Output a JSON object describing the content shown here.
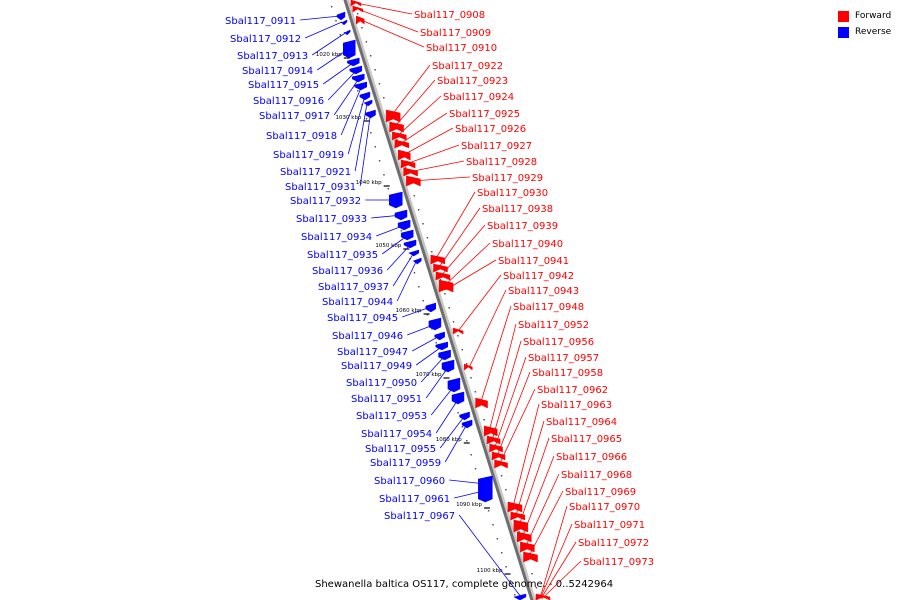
{
  "genome": {
    "caption": "Shewanella baltica OS117, complete genome. - 0..5242964"
  },
  "legend": {
    "forward": {
      "label": "Forward",
      "color": "#ff0000"
    },
    "reverse": {
      "label": "Reverse",
      "color": "#0000ff"
    }
  },
  "ticks": [
    "1020 kbp",
    "1030 kbp",
    "1040 kbp",
    "1050 kbp",
    "1060 kbp",
    "1070 kbp",
    "1080 kbp",
    "1090 kbp",
    "1100 kbp"
  ],
  "reverse_genes": [
    "Sbal117_0911",
    "Sbal117_0912",
    "Sbal117_0913",
    "Sbal117_0914",
    "Sbal117_0915",
    "Sbal117_0916",
    "Sbal117_0917",
    "Sbal117_0918",
    "Sbal117_0919",
    "Sbal117_0921",
    "Sbal117_0931",
    "Sbal117_0932",
    "Sbal117_0933",
    "Sbal117_0934",
    "Sbal117_0935",
    "Sbal117_0936",
    "Sbal117_0937",
    "Sbal117_0944",
    "Sbal117_0945",
    "Sbal117_0946",
    "Sbal117_0947",
    "Sbal117_0949",
    "Sbal117_0950",
    "Sbal117_0951",
    "Sbal117_0953",
    "Sbal117_0954",
    "Sbal117_0955",
    "Sbal117_0959",
    "Sbal117_0960",
    "Sbal117_0961",
    "Sbal117_0967"
  ],
  "forward_genes": [
    "Sbal117_0908",
    "Sbal117_0909",
    "Sbal117_0910",
    "Sbal117_0922",
    "Sbal117_0923",
    "Sbal117_0924",
    "Sbal117_0925",
    "Sbal117_0926",
    "Sbal117_0927",
    "Sbal117_0928",
    "Sbal117_0929",
    "Sbal117_0930",
    "Sbal117_0938",
    "Sbal117_0939",
    "Sbal117_0940",
    "Sbal117_0941",
    "Sbal117_0942",
    "Sbal117_0943",
    "Sbal117_0948",
    "Sbal117_0952",
    "Sbal117_0956",
    "Sbal117_0957",
    "Sbal117_0958",
    "Sbal117_0962",
    "Sbal117_0963",
    "Sbal117_0964",
    "Sbal117_0965",
    "Sbal117_0966",
    "Sbal117_0968",
    "Sbal117_0969",
    "Sbal117_0970",
    "Sbal117_0971",
    "Sbal117_0972",
    "Sbal117_0973"
  ]
}
